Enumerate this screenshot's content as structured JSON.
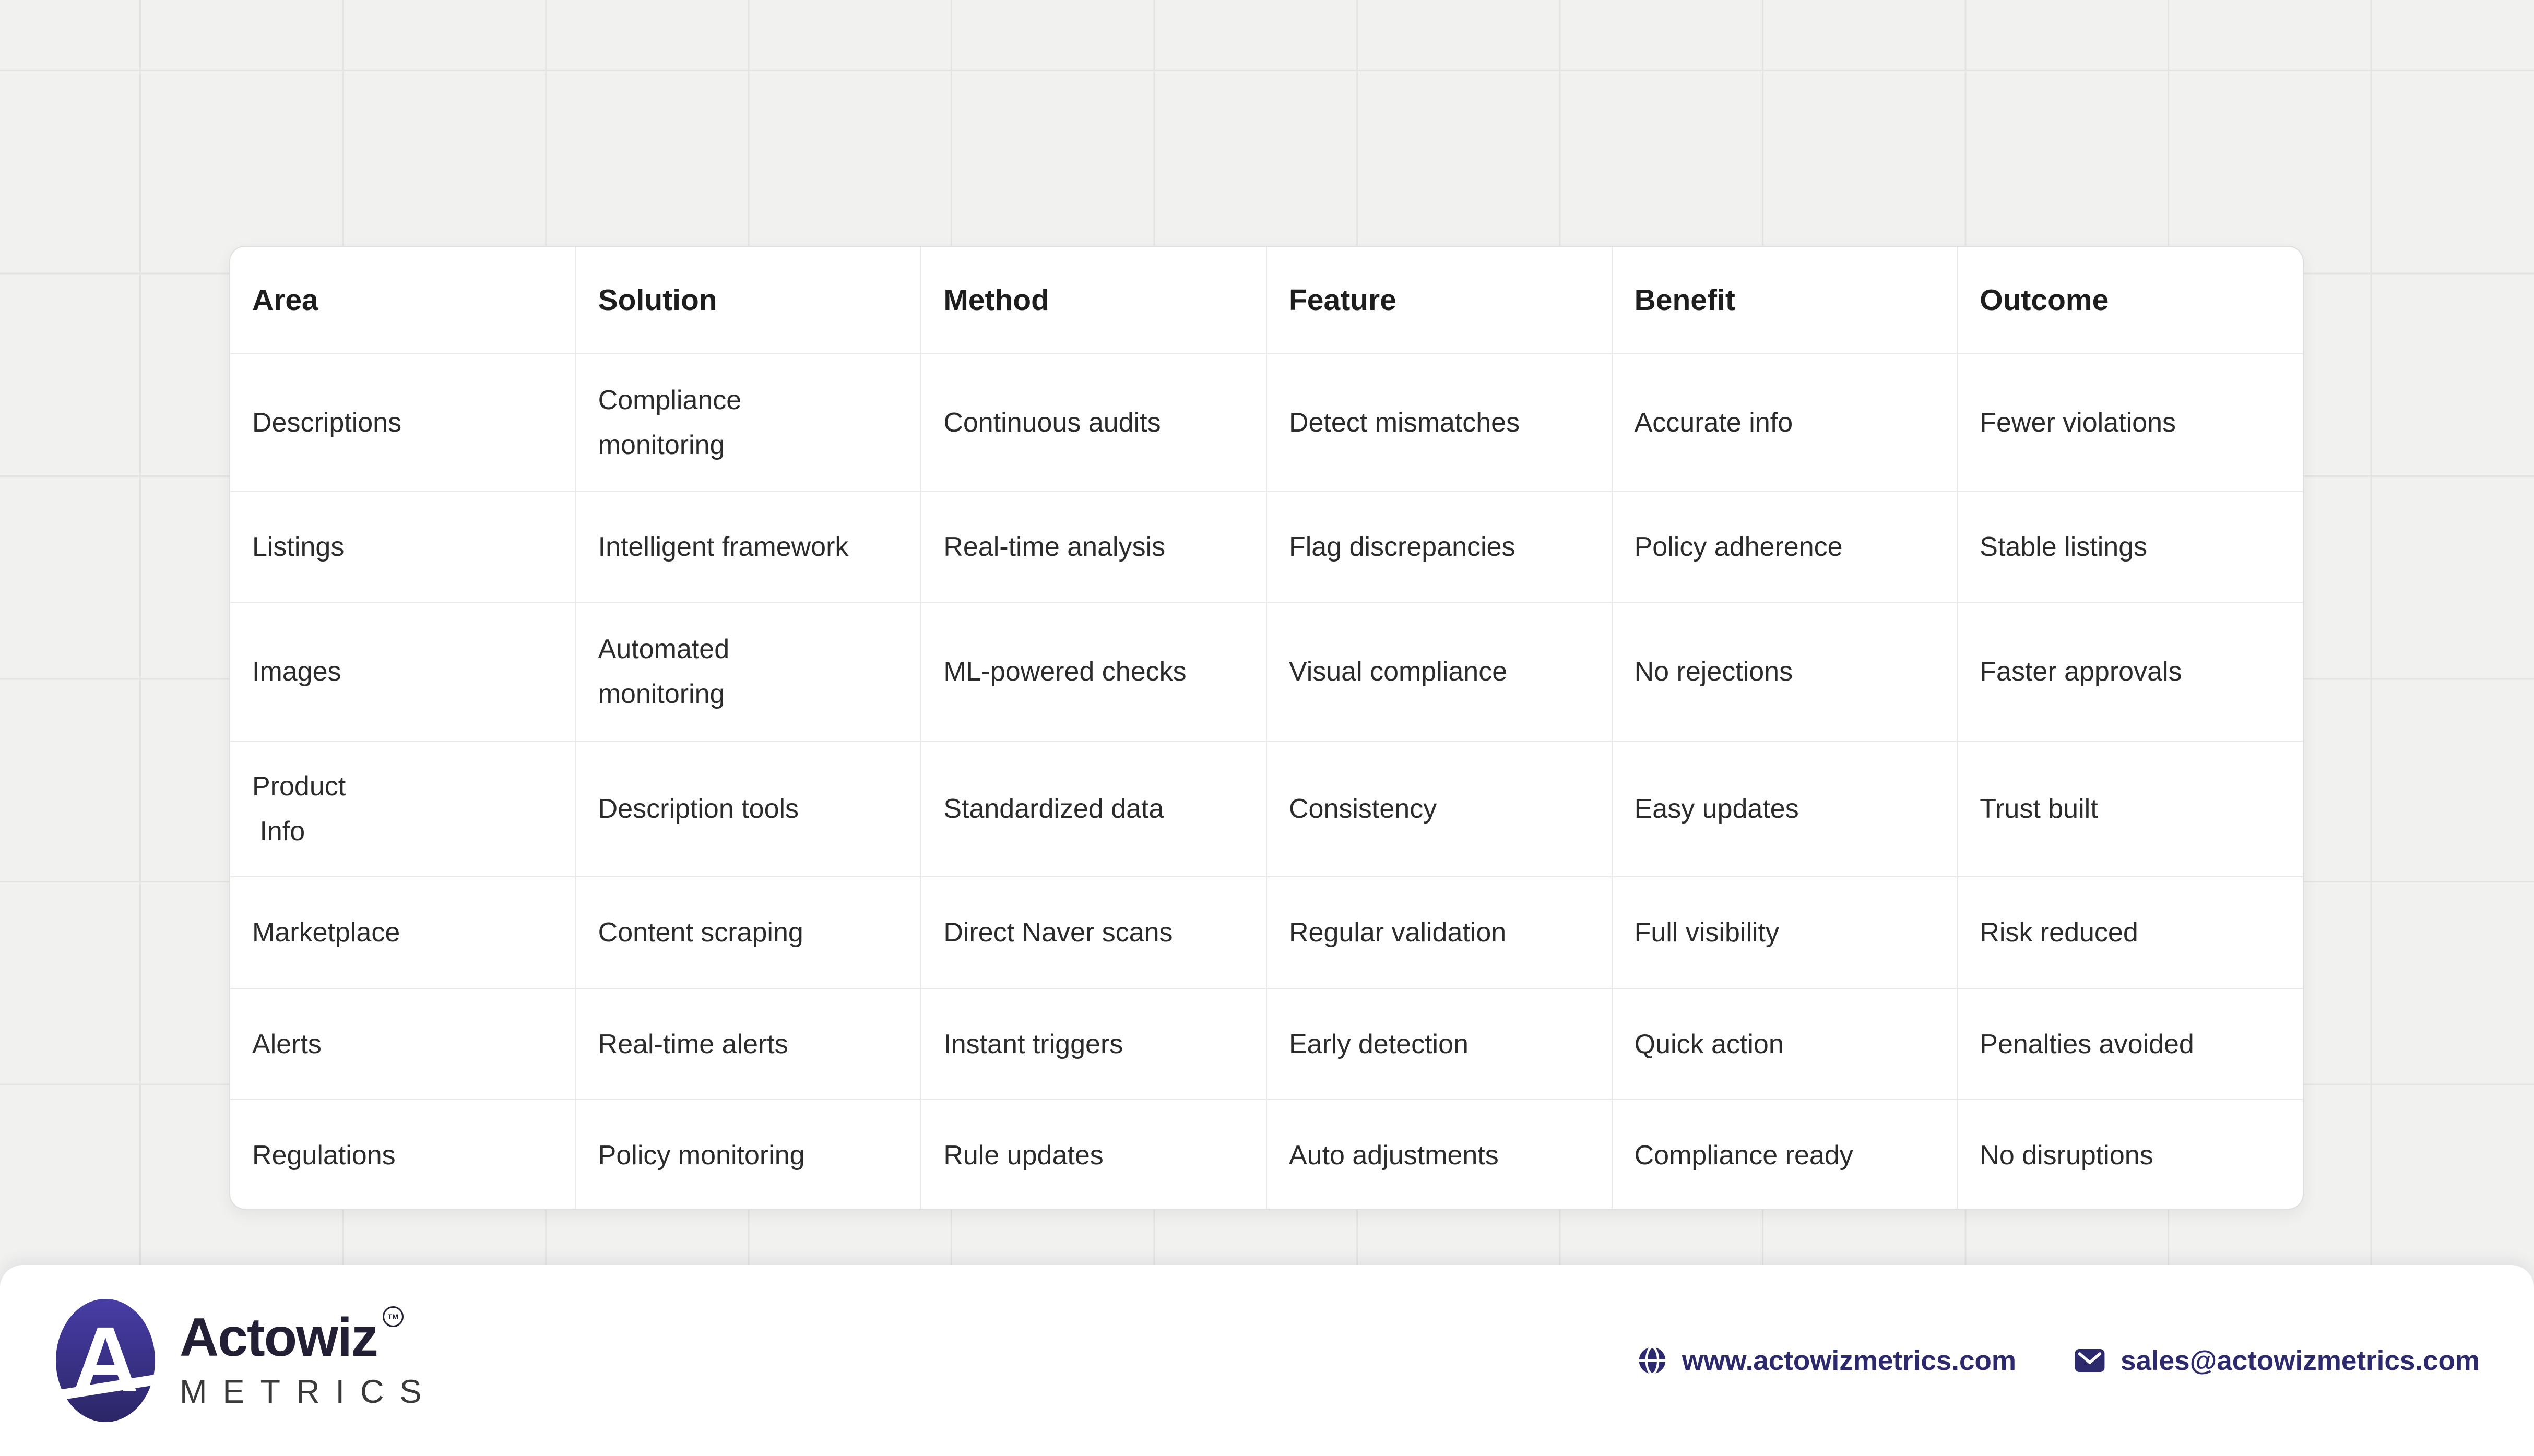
{
  "chart_data": {
    "type": "table",
    "columns": [
      "Area",
      "Solution",
      "Method",
      "Feature",
      "Benefit",
      "Outcome"
    ],
    "rows": [
      [
        "Descriptions",
        "Compliance\nmonitoring",
        "Continuous audits",
        "Detect mismatches",
        "Accurate info",
        "Fewer violations"
      ],
      [
        "Listings",
        "Intelligent framework",
        "Real-time analysis",
        "Flag discrepancies",
        "Policy adherence",
        "Stable listings"
      ],
      [
        "Images",
        "Automated\nmonitoring",
        "ML-powered checks",
        "Visual compliance",
        "No rejections",
        "Faster approvals"
      ],
      [
        "Product\n Info",
        "Description tools",
        "Standardized data",
        "Consistency",
        "Easy updates",
        "Trust built"
      ],
      [
        "Marketplace",
        "Content scraping",
        "Direct Naver scans",
        "Regular validation",
        "Full visibility",
        "Risk reduced"
      ],
      [
        "Alerts",
        "Real-time alerts",
        "Instant triggers",
        "Early detection",
        "Quick action",
        "Penalties avoided"
      ],
      [
        "Regulations",
        "Policy monitoring",
        "Rule updates",
        "Auto adjustments",
        "Compliance ready",
        "No disruptions"
      ]
    ],
    "layout": {
      "grid": "on",
      "legend": "none"
    }
  },
  "footer": {
    "logo": {
      "monogram": "A",
      "brand": "Actowiz",
      "trademark": "TM",
      "subtitle": "METRICS"
    },
    "website": "www.actowizmetrics.com",
    "email": "sales@actowizmetrics.com",
    "website_icon": "globe-icon",
    "email_icon": "mail-icon"
  },
  "colors": {
    "accent_indigo": "#2d296d",
    "logo_gradient_top": "#473da6",
    "logo_gradient_bottom": "#2b2667",
    "brand_text": "#232036",
    "table_header_text": "#1d1d1d",
    "table_body_text": "#2b2b2b",
    "background": "#f1f1f0",
    "grid_line": "#e4e4e3",
    "cell_border": "#e9e9e8"
  }
}
